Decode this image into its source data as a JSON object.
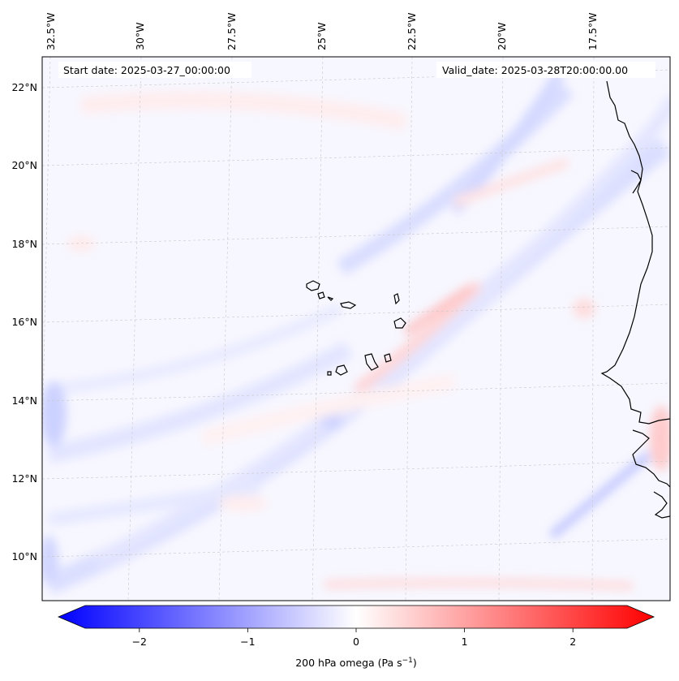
{
  "map": {
    "start_label": "Start date: 2025-03-27_00:00:00",
    "valid_label": "Valid_date: 2025-03-28T20:00:00.00",
    "lon_ticks": [
      "32.5°W",
      "30°W",
      "27.5°W",
      "25°W",
      "22.5°W",
      "20°W",
      "17.5°W"
    ],
    "lat_ticks": [
      "22°N",
      "20°N",
      "18°N",
      "16°N",
      "14°N",
      "12°N",
      "10°N"
    ],
    "colors": {
      "neg_max": "#0000ff",
      "pos_max": "#ff0000",
      "neutral": "#ffffff",
      "coast": "#000000",
      "grid": "#c8c8c8"
    }
  },
  "colorbar": {
    "tick_labels": [
      "−2",
      "−1",
      "0",
      "1",
      "2"
    ],
    "tick_values": [
      -2,
      -1,
      0,
      1,
      2
    ],
    "vmin": -2.5,
    "vmax": 2.5,
    "label_main": "200 hPa omega (Pa s",
    "label_exp": "−1",
    "label_end": ")"
  }
}
